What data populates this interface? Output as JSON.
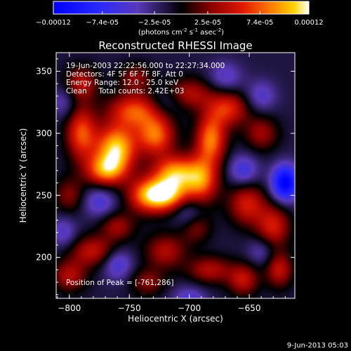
{
  "colorbar": {
    "ticks": [
      "-0.00012",
      "-7.4e-05",
      "-2.5e-05",
      "2.5e-05",
      "7.4e-05",
      "0.00012"
    ],
    "unit_parts": [
      "(photons cm",
      "-2",
      " s",
      "-1",
      " asec",
      "-2",
      ")"
    ]
  },
  "chart_data": {
    "type": "heatmap",
    "title": "Reconstructed RHESSI Image",
    "xlabel": "Heliocentric X (arcsec)",
    "ylabel": "Heliocentric Y (arcsec)",
    "xlim": [
      -811,
      -612
    ],
    "ylim": [
      167,
      365
    ],
    "x_ticks": [
      -800,
      -750,
      -700,
      -650
    ],
    "y_ticks": [
      200,
      250,
      300,
      350
    ],
    "x_tick_labels": [
      "−800",
      "−750",
      "−700",
      "−650"
    ],
    "y_tick_labels": [
      "200",
      "250",
      "300",
      "350"
    ],
    "colorbar_range": [
      -0.00012,
      0.00012
    ],
    "annotations": [
      "19-Jun-2003 22:22:56.000 to 22:27:34.000",
      "Detectors: 4F 5F 6F 7F 8F, Att 0",
      "Energy Range: 12.0 - 25.0 keV",
      "Clean     Total counts: 2.42E+03"
    ],
    "peak_label": "Position of Peak = [-761,286]",
    "peak_position": [
      -761,
      286
    ],
    "blobs": [
      {
        "x": -761,
        "y": 288,
        "value": 1.0,
        "sx": 12,
        "sy": 13
      },
      {
        "x": -770,
        "y": 270,
        "value": 0.75,
        "sx": 12,
        "sy": 9
      },
      {
        "x": -745,
        "y": 318,
        "value": 0.7,
        "sx": 16,
        "sy": 10
      },
      {
        "x": -790,
        "y": 300,
        "value": 0.7,
        "sx": 9,
        "sy": 15
      },
      {
        "x": -735,
        "y": 250,
        "value": 0.75,
        "sx": 12,
        "sy": 10
      },
      {
        "x": -728,
        "y": 298,
        "value": 0.75,
        "sx": 11,
        "sy": 11
      },
      {
        "x": -712,
        "y": 268,
        "value": 0.85,
        "sx": 13,
        "sy": 10
      },
      {
        "x": -718,
        "y": 250,
        "value": 0.8,
        "sx": 12,
        "sy": 9
      },
      {
        "x": -690,
        "y": 262,
        "value": 0.75,
        "sx": 10,
        "sy": 13
      },
      {
        "x": -682,
        "y": 295,
        "value": 0.8,
        "sx": 9,
        "sy": 14
      },
      {
        "x": -668,
        "y": 320,
        "value": 0.6,
        "sx": 12,
        "sy": 10
      },
      {
        "x": -700,
        "y": 332,
        "value": 0.45,
        "sx": 14,
        "sy": 9
      },
      {
        "x": -640,
        "y": 300,
        "value": 0.4,
        "sx": 10,
        "sy": 10
      },
      {
        "x": -652,
        "y": 243,
        "value": 0.55,
        "sx": 11,
        "sy": 12
      },
      {
        "x": -630,
        "y": 225,
        "value": 0.55,
        "sx": 10,
        "sy": 12
      },
      {
        "x": -625,
        "y": 190,
        "value": 0.5,
        "sx": 8,
        "sy": 10
      },
      {
        "x": -683,
        "y": 190,
        "value": 0.45,
        "sx": 13,
        "sy": 8
      },
      {
        "x": -655,
        "y": 182,
        "value": 0.5,
        "sx": 9,
        "sy": 9
      },
      {
        "x": -720,
        "y": 205,
        "value": 0.45,
        "sx": 12,
        "sy": 10
      },
      {
        "x": -780,
        "y": 205,
        "value": 0.5,
        "sx": 14,
        "sy": 9
      },
      {
        "x": -760,
        "y": 225,
        "value": 0.4,
        "sx": 10,
        "sy": 8
      },
      {
        "x": -800,
        "y": 250,
        "value": 0.35,
        "sx": 9,
        "sy": 10
      },
      {
        "x": -745,
        "y": 345,
        "value": 0.35,
        "sx": 10,
        "sy": 8
      },
      {
        "x": -790,
        "y": 340,
        "value": 0.45,
        "sx": 10,
        "sy": 10
      },
      {
        "x": -800,
        "y": 185,
        "value": 0.45,
        "sx": 10,
        "sy": 9
      },
      {
        "x": -735,
        "y": 180,
        "value": 0.35,
        "sx": 10,
        "sy": 8
      },
      {
        "x": -695,
        "y": 225,
        "value": 0.4,
        "sx": 9,
        "sy": 9
      },
      {
        "x": -620,
        "y": 260,
        "value": -0.9,
        "sx": 8,
        "sy": 10
      },
      {
        "x": -655,
        "y": 270,
        "value": -0.4,
        "sx": 9,
        "sy": 9
      },
      {
        "x": -700,
        "y": 235,
        "value": -0.35,
        "sx": 9,
        "sy": 9
      },
      {
        "x": -775,
        "y": 245,
        "value": -0.35,
        "sx": 10,
        "sy": 9
      },
      {
        "x": -760,
        "y": 195,
        "value": -0.4,
        "sx": 9,
        "sy": 9
      },
      {
        "x": -700,
        "y": 165,
        "value": -0.35,
        "sx": 10,
        "sy": 8
      },
      {
        "x": -805,
        "y": 325,
        "value": -0.25,
        "sx": 8,
        "sy": 9
      },
      {
        "x": -670,
        "y": 345,
        "value": -0.3,
        "sx": 10,
        "sy": 9
      },
      {
        "x": -720,
        "y": 325,
        "value": -0.25,
        "sx": 10,
        "sy": 8
      },
      {
        "x": -640,
        "y": 330,
        "value": -0.3,
        "sx": 9,
        "sy": 9
      },
      {
        "x": -805,
        "y": 220,
        "value": -0.3,
        "sx": 8,
        "sy": 9
      },
      {
        "x": -640,
        "y": 205,
        "value": -0.25,
        "sx": 8,
        "sy": 8
      }
    ],
    "background_level": -0.12
  },
  "footer": {
    "timestamp": "9-Jun-2013 05:03"
  }
}
